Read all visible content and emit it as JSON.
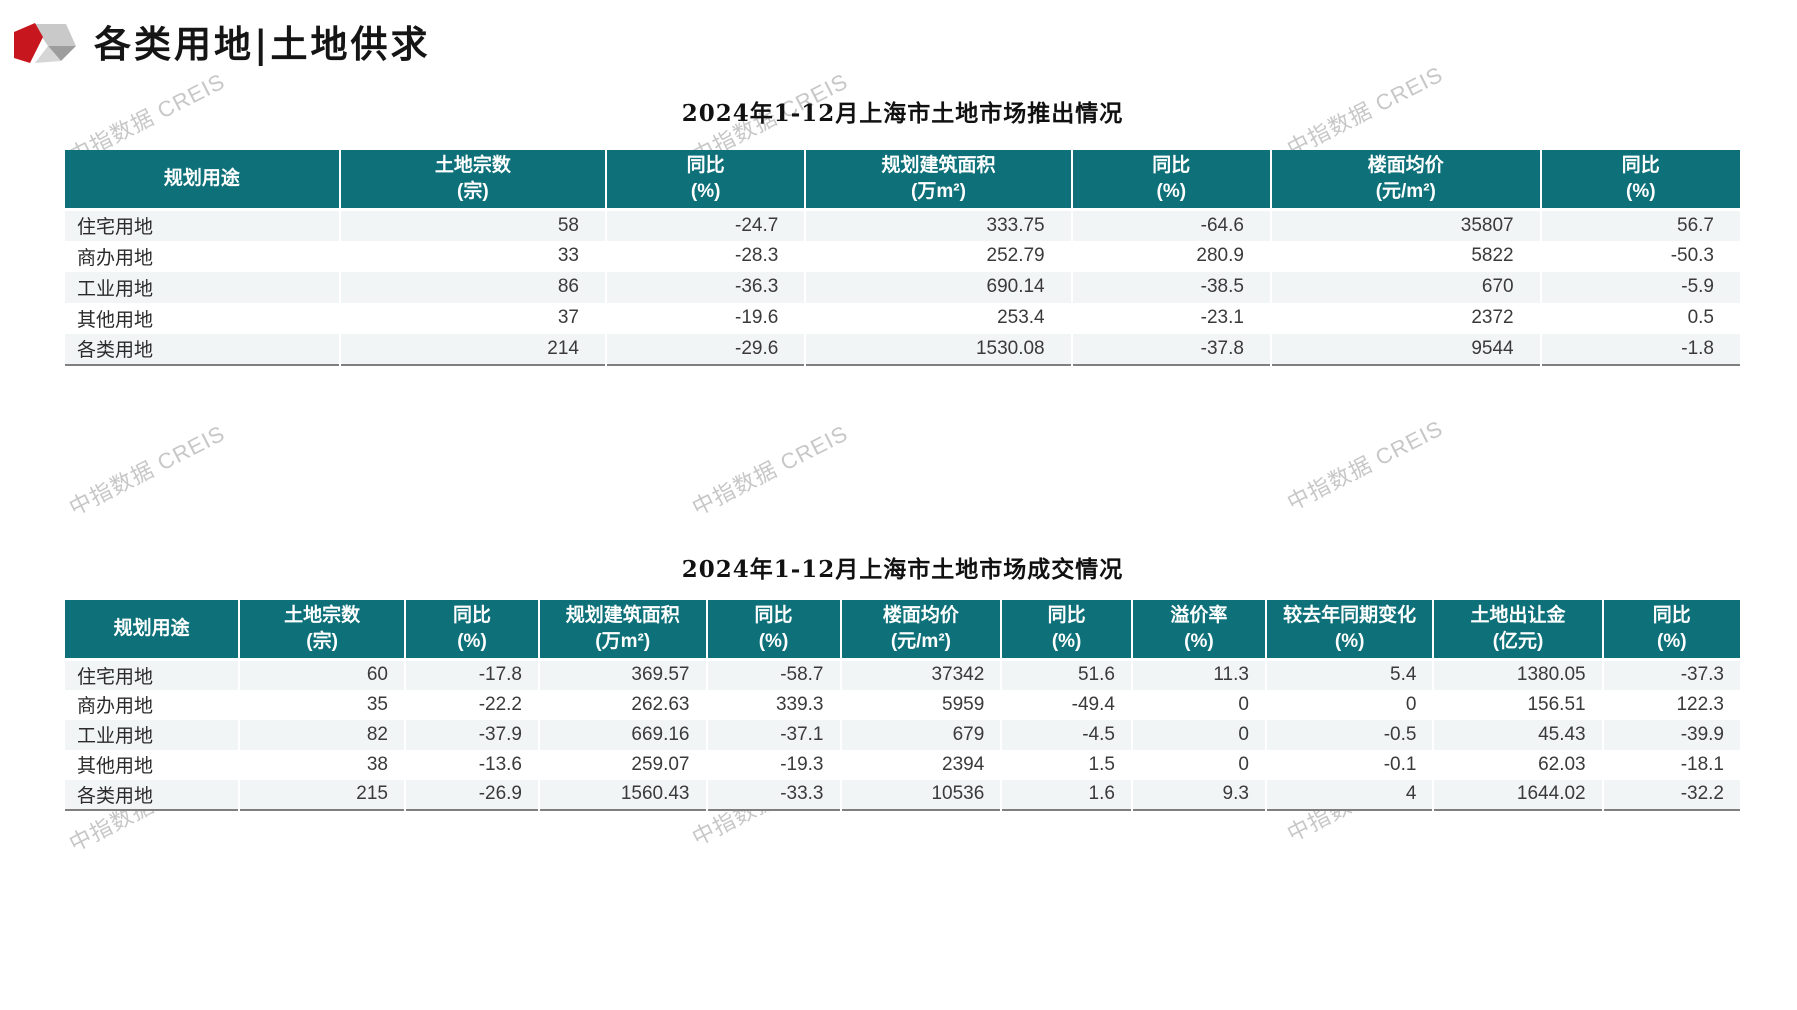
{
  "page": {
    "title": "各类用地|土地供求",
    "watermark_text": "中指数据 CREIS"
  },
  "colors": {
    "accent_red": "#C8161E",
    "header_teal": "#0E7179",
    "row_stripe": "#F2F5F6",
    "watermark_gray": "#C7C7C7"
  },
  "table1": {
    "title": "2024年1-12月上海市土地市场推出情况",
    "columns": [
      [
        "规划用途"
      ],
      [
        "土地宗数",
        "(宗)"
      ],
      [
        "同比",
        "(%)"
      ],
      [
        "规划建筑面积",
        "(万m²)"
      ],
      [
        "同比",
        "(%)"
      ],
      [
        "楼面均价",
        "(元/m²)"
      ],
      [
        "同比",
        "(%)"
      ]
    ],
    "rows": [
      [
        "住宅用地",
        "58",
        "-24.7",
        "333.75",
        "-64.6",
        "35807",
        "56.7"
      ],
      [
        "商办用地",
        "33",
        "-28.3",
        "252.79",
        "280.9",
        "5822",
        "-50.3"
      ],
      [
        "工业用地",
        "86",
        "-36.3",
        "690.14",
        "-38.5",
        "670",
        "-5.9"
      ],
      [
        "其他用地",
        "37",
        "-19.6",
        "253.4",
        "-23.1",
        "2372",
        "0.5"
      ],
      [
        "各类用地",
        "214",
        "-29.6",
        "1530.08",
        "-37.8",
        "9544",
        "-1.8"
      ]
    ]
  },
  "table2": {
    "title": "2024年1-12月上海市土地市场成交情况",
    "columns": [
      [
        "规划用途"
      ],
      [
        "土地宗数",
        "(宗)"
      ],
      [
        "同比",
        "(%)"
      ],
      [
        "规划建筑面积",
        "(万m²)"
      ],
      [
        "同比",
        "(%)"
      ],
      [
        "楼面均价",
        "(元/m²)"
      ],
      [
        "同比",
        "(%)"
      ],
      [
        "溢价率",
        "(%)"
      ],
      [
        "较去年同期变化",
        "(%)"
      ],
      [
        "土地出让金",
        "(亿元)"
      ],
      [
        "同比",
        "(%)"
      ]
    ],
    "rows": [
      [
        "住宅用地",
        "60",
        "-17.8",
        "369.57",
        "-58.7",
        "37342",
        "51.6",
        "11.3",
        "5.4",
        "1380.05",
        "-37.3"
      ],
      [
        "商办用地",
        "35",
        "-22.2",
        "262.63",
        "339.3",
        "5959",
        "-49.4",
        "0",
        "0",
        "156.51",
        "122.3"
      ],
      [
        "工业用地",
        "82",
        "-37.9",
        "669.16",
        "-37.1",
        "679",
        "-4.5",
        "0",
        "-0.5",
        "45.43",
        "-39.9"
      ],
      [
        "其他用地",
        "38",
        "-13.6",
        "259.07",
        "-19.3",
        "2394",
        "1.5",
        "0",
        "-0.1",
        "62.03",
        "-18.1"
      ],
      [
        "各类用地",
        "215",
        "-26.9",
        "1560.43",
        "-33.3",
        "10536",
        "1.6",
        "9.3",
        "4",
        "1644.02",
        "-32.2"
      ]
    ]
  }
}
